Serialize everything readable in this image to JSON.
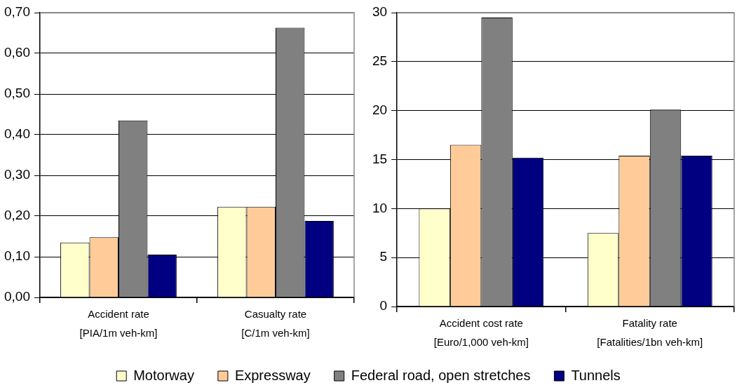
{
  "chart_data": [
    {
      "type": "bar",
      "categories": [
        "Accident rate\n[PIA/1m veh-km]",
        "Casualty rate\n[C/1m veh-km]"
      ],
      "series": [
        {
          "name": "Motorway",
          "color": "#ffffcc",
          "values": [
            0.135,
            0.223
          ]
        },
        {
          "name": "Expressway",
          "color": "#ffcc99",
          "values": [
            0.148,
            0.223
          ]
        },
        {
          "name": "Federal road, open stretches",
          "color": "#808080",
          "values": [
            0.435,
            0.663
          ]
        },
        {
          "name": "Tunnels",
          "color": "#000080",
          "values": [
            0.105,
            0.188
          ]
        }
      ],
      "ylim": [
        0,
        0.7
      ],
      "yticks": [
        {
          "value": 0,
          "label": "0,00"
        },
        {
          "value": 0.1,
          "label": "0,10"
        },
        {
          "value": 0.2,
          "label": "0,20"
        },
        {
          "value": 0.3,
          "label": "0,30"
        },
        {
          "value": 0.4,
          "label": "0,40"
        },
        {
          "value": 0.5,
          "label": "0,50"
        },
        {
          "value": 0.6,
          "label": "0,60"
        },
        {
          "value": 0.7,
          "label": "0,70"
        }
      ],
      "grid": "y",
      "legend": "bottom"
    },
    {
      "type": "bar",
      "categories": [
        "Accident cost rate\n[Euro/1,000 veh-km]",
        "Fatality rate\n[Fatalities/1bn veh-km]"
      ],
      "series": [
        {
          "color": "#ffffcc",
          "values": [
            10.0,
            7.5
          ]
        },
        {
          "color": "#ffcc99",
          "values": [
            16.5,
            15.4
          ]
        },
        {
          "color": "#808080",
          "values": [
            29.5,
            20.1
          ]
        },
        {
          "color": "#000080",
          "values": [
            15.2,
            15.4
          ]
        }
      ],
      "ylim": [
        0,
        30
      ],
      "yticks": [
        0,
        5,
        10,
        15,
        20,
        25,
        30
      ],
      "grid": "y"
    }
  ]
}
